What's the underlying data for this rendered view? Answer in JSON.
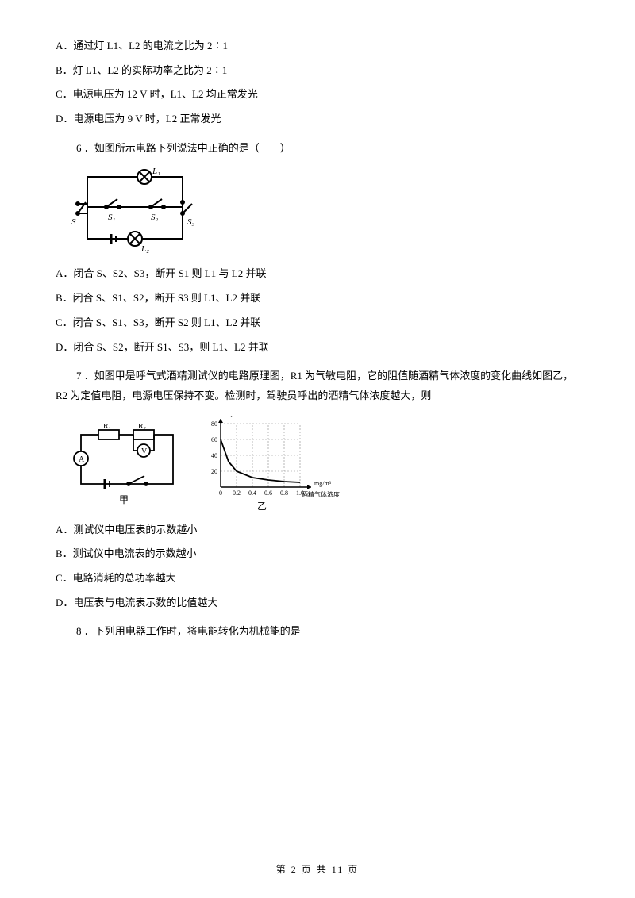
{
  "q5": {
    "A": "A．通过灯 L1、L2 的电流之比为 2∶1",
    "B": "B．灯 L1、L2 的实际功率之比为 2∶1",
    "C": "C．电源电压为 12 V 时，L1、L2 均正常发光",
    "D": "D．电源电压为 9 V 时，L2 正常发光"
  },
  "q6": {
    "stem": "6 ．如图所示电路下列说法中正确的是（　　）",
    "A": "A．闭合 S、S2、S3，断开 S1 则 L1 与 L2 并联",
    "B": "B．闭合 S、S1、S2，断开 S3 则 L1、L2 并联",
    "C": "C．闭合 S、S1、S3，断开 S2 则 L1、L2 并联",
    "D": "D．闭合 S、S2，断开 S1、S3，则 L1、L2 并联"
  },
  "q7": {
    "stem": "7 ．如图甲是呼气式酒精测试仪的电路原理图，R1 为气敏电阻，它的阻值随酒精气体浓度的变化曲线如图乙，R2 为定值电阻，电源电压保持不变。检测时，驾驶员呼出的酒精气体浓度越大，则",
    "A": "A．测试仪中电压表的示数越小",
    "B": "B．测试仪中电流表的示数越小",
    "C": "C．电路消耗的总功率越大",
    "D": "D．电压表与电流表示数的比值越大"
  },
  "q8": {
    "stem": "8 ．下列用电器工作时，将电能转化为机械能的是"
  },
  "fig6": {
    "labels": {
      "L1": "L₁",
      "L2": "L₂",
      "S": "S",
      "S1": "S₁",
      "S2": "S₂",
      "S3": "S₃"
    },
    "stroke": "#000000",
    "strokeWidth": 2
  },
  "fig7": {
    "caption1": "甲",
    "caption2": "乙",
    "labels": {
      "R1": "R₁",
      "R2": "R₂",
      "A": "A",
      "V": "V"
    },
    "chart": {
      "ylabel": "R₁/Ω",
      "xlabel": "mg/m³",
      "xcaption": "酒精气体浓度",
      "xticks": [
        "0",
        "0.2",
        "0.4",
        "0.6",
        "0.8",
        "1.0"
      ],
      "yticks": [
        "20",
        "40",
        "60",
        "80"
      ],
      "curve": [
        [
          0,
          60
        ],
        [
          0.1,
          32
        ],
        [
          0.2,
          20
        ],
        [
          0.4,
          12
        ],
        [
          0.6,
          9
        ],
        [
          0.8,
          7
        ],
        [
          1.0,
          6
        ]
      ],
      "xlim": [
        0,
        1.0
      ],
      "ylim": [
        0,
        80
      ],
      "grid_color": "#888888",
      "curve_color": "#000000"
    }
  },
  "footer": {
    "current": "2",
    "total": "11",
    "prefix": "第 ",
    "mid": " 页 共 ",
    "suffix": " 页"
  }
}
